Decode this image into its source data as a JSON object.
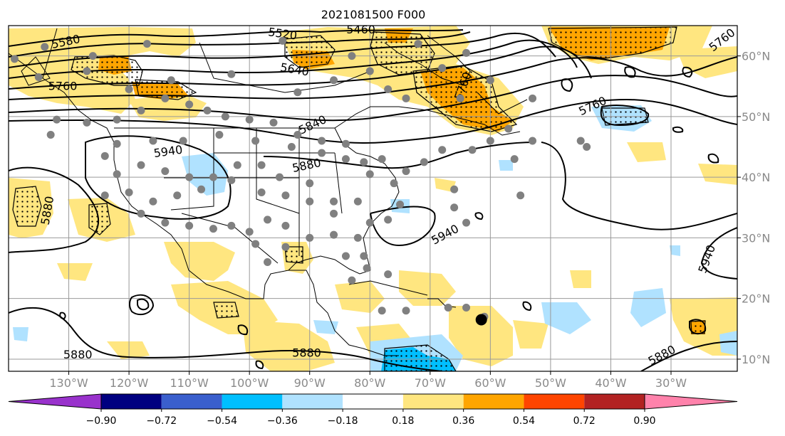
{
  "title": "2021081500 F000",
  "map": {
    "lon_range": [
      -140,
      -19
    ],
    "lat_range": [
      8,
      65
    ],
    "lon_ticks": [
      {
        "value": -130,
        "label": "130°W"
      },
      {
        "value": -120,
        "label": "120°W"
      },
      {
        "value": -110,
        "label": "110°W"
      },
      {
        "value": -100,
        "label": "100°W"
      },
      {
        "value": -90,
        "label": "90°W"
      },
      {
        "value": -80,
        "label": "80°W"
      },
      {
        "value": -70,
        "label": "70°W"
      },
      {
        "value": -60,
        "label": "60°W"
      },
      {
        "value": -50,
        "label": "50°W"
      },
      {
        "value": -40,
        "label": "40°W"
      },
      {
        "value": -30,
        "label": "30°W"
      }
    ],
    "lat_ticks": [
      {
        "value": 60,
        "label": "60°N"
      },
      {
        "value": 50,
        "label": "50°N"
      },
      {
        "value": 40,
        "label": "40°N"
      },
      {
        "value": 30,
        "label": "30°N"
      },
      {
        "value": 20,
        "label": "20°N"
      },
      {
        "value": 10,
        "label": "10°N"
      }
    ],
    "contour_labels": [
      {
        "text": "5580",
        "lon": -130.5,
        "lat": 62.3,
        "angle": -12
      },
      {
        "text": "5520",
        "lon": -94.5,
        "lat": 63.6,
        "angle": 8
      },
      {
        "text": "5460",
        "lon": -81.5,
        "lat": 64.3,
        "angle": 0
      },
      {
        "text": "5640",
        "lon": -92.5,
        "lat": 57.7,
        "angle": 10
      },
      {
        "text": "5760",
        "lon": -131.0,
        "lat": 55.0,
        "angle": 0
      },
      {
        "text": "5760",
        "lon": -64.5,
        "lat": 55.0,
        "angle": -70
      },
      {
        "text": "5760",
        "lon": -43.0,
        "lat": 51.7,
        "angle": -25
      },
      {
        "text": "5760",
        "lon": -21.5,
        "lat": 62.6,
        "angle": -38
      },
      {
        "text": "5840",
        "lon": -89.5,
        "lat": 48.6,
        "angle": -25
      },
      {
        "text": "5940",
        "lon": -113.5,
        "lat": 44.2,
        "angle": -8
      },
      {
        "text": "5880",
        "lon": -90.5,
        "lat": 41.9,
        "angle": -12
      },
      {
        "text": "5880",
        "lon": -133.5,
        "lat": 34.5,
        "angle": -80
      },
      {
        "text": "5940",
        "lon": -67.5,
        "lat": 30.5,
        "angle": -28
      },
      {
        "text": "5940",
        "lon": -24.0,
        "lat": 26.5,
        "angle": -70
      },
      {
        "text": "5880",
        "lon": -128.5,
        "lat": 10.7,
        "angle": 0
      },
      {
        "text": "5880",
        "lon": -90.5,
        "lat": 11.0,
        "angle": 0
      },
      {
        "text": "5880",
        "lon": -31.5,
        "lat": 10.6,
        "angle": -28
      }
    ],
    "black_marker": {
      "lon": -61.5,
      "lat": 16.5
    },
    "gray_stations": [
      [
        -139,
        59.5
      ],
      [
        -134,
        61.5
      ],
      [
        -126,
        60
      ],
      [
        -117,
        62
      ],
      [
        -135,
        56.5
      ],
      [
        -127,
        57.5
      ],
      [
        -120,
        54.5
      ],
      [
        -113,
        56
      ],
      [
        -103,
        57
      ],
      [
        -94.5,
        62.5
      ],
      [
        -83,
        60
      ],
      [
        -80,
        57.5
      ],
      [
        -72,
        62
      ],
      [
        -92,
        54
      ],
      [
        -86,
        56
      ],
      [
        -77,
        54.5
      ],
      [
        -68,
        58
      ],
      [
        -64,
        60.5
      ],
      [
        -60,
        56
      ],
      [
        -74,
        53
      ],
      [
        -65,
        53
      ],
      [
        -53,
        53
      ],
      [
        -57,
        48
      ],
      [
        -60,
        46
      ],
      [
        -53,
        46
      ],
      [
        -45,
        46
      ],
      [
        -56,
        43
      ],
      [
        -63,
        44.5
      ],
      [
        -68,
        44.5
      ],
      [
        -71,
        42.5
      ],
      [
        -74,
        41
      ],
      [
        -78,
        43
      ],
      [
        -81,
        42.5
      ],
      [
        -84,
        45.5
      ],
      [
        -88,
        46
      ],
      [
        -92,
        47
      ],
      [
        -96,
        49
      ],
      [
        -100,
        49.5
      ],
      [
        -104,
        50
      ],
      [
        -107,
        51
      ],
      [
        -110,
        52
      ],
      [
        -114,
        53
      ],
      [
        -118,
        51
      ],
      [
        -122,
        49.5
      ],
      [
        -127,
        49
      ],
      [
        -132,
        49.5
      ],
      [
        -133,
        47
      ],
      [
        -122,
        45.5
      ],
      [
        -116,
        46
      ],
      [
        -111,
        46
      ],
      [
        -105,
        47
      ],
      [
        -99,
        46
      ],
      [
        -93,
        45
      ],
      [
        -88,
        44
      ],
      [
        -84,
        43
      ],
      [
        -80,
        40.5
      ],
      [
        -76,
        39
      ],
      [
        -75,
        35.5
      ],
      [
        -77,
        33
      ],
      [
        -80,
        32.5
      ],
      [
        -82,
        36
      ],
      [
        -86,
        36
      ],
      [
        -90,
        39
      ],
      [
        -95,
        40
      ],
      [
        -98,
        42
      ],
      [
        -102,
        42
      ],
      [
        -106,
        40
      ],
      [
        -110,
        40
      ],
      [
        -114,
        41
      ],
      [
        -118,
        42
      ],
      [
        -122,
        40.5
      ],
      [
        -124,
        43.5
      ],
      [
        -124,
        37
      ],
      [
        -120,
        37.5
      ],
      [
        -116,
        36
      ],
      [
        -112,
        37
      ],
      [
        -108,
        38
      ],
      [
        -103,
        39.5
      ],
      [
        -98,
        37.5
      ],
      [
        -94,
        37
      ],
      [
        -90,
        36
      ],
      [
        -86,
        34
      ],
      [
        -82,
        30
      ],
      [
        -84,
        27
      ],
      [
        -86,
        30.5
      ],
      [
        -90,
        30
      ],
      [
        -94,
        32
      ],
      [
        -97,
        33
      ],
      [
        -100,
        31
      ],
      [
        -103,
        32
      ],
      [
        -106,
        31.5
      ],
      [
        -110,
        32
      ],
      [
        -114,
        32.5
      ],
      [
        -118,
        34
      ],
      [
        -97,
        26
      ],
      [
        -99,
        29
      ],
      [
        -94,
        28.5
      ],
      [
        -81,
        27
      ],
      [
        -80.5,
        25
      ],
      [
        -83,
        23
      ],
      [
        -77,
        24
      ],
      [
        -78,
        18
      ],
      [
        -74,
        18
      ],
      [
        -67,
        18.5
      ],
      [
        -64,
        18.5
      ],
      [
        -61,
        17
      ],
      [
        -66,
        38
      ],
      [
        -64,
        32.5
      ],
      [
        -44,
        45
      ],
      [
        -55,
        37
      ],
      [
        -66,
        35
      ]
    ],
    "colorbar": {
      "ticks": [
        "−0.90",
        "−0.72",
        "−0.54",
        "−0.36",
        "−0.18",
        "0.18",
        "0.36",
        "0.54",
        "0.72",
        "0.90"
      ],
      "colors": [
        "#9932cc",
        "#000080",
        "#3a5fcd",
        "#00bfff",
        "#b0e2ff",
        "#ffffff",
        "#ffe680",
        "#ffa500",
        "#ff4500",
        "#b22222",
        "#ff82ab"
      ]
    }
  }
}
